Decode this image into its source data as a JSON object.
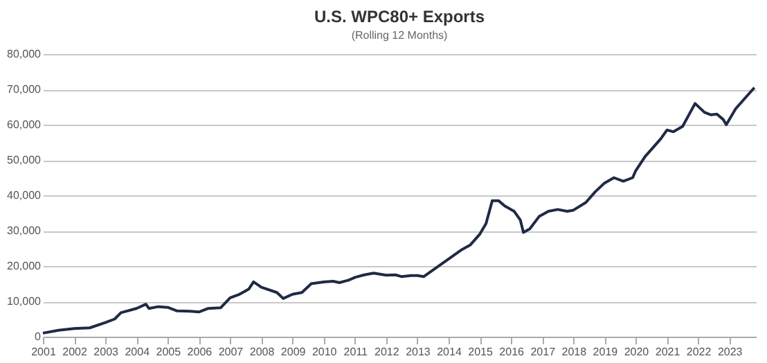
{
  "chart_data": {
    "type": "line",
    "title": "U.S. WPC80+ Exports",
    "subtitle": "(Rolling 12 Months)",
    "x": [
      2001.0,
      2001.5,
      2002.0,
      2002.5,
      2003.0,
      2003.3,
      2003.5,
      2004.0,
      2004.3,
      2004.4,
      2004.7,
      2005.0,
      2005.3,
      2005.7,
      2006.0,
      2006.3,
      2006.7,
      2007.0,
      2007.3,
      2007.6,
      2007.75,
      2008.0,
      2008.5,
      2008.7,
      2009.0,
      2009.3,
      2009.6,
      2010.0,
      2010.3,
      2010.5,
      2010.8,
      2011.0,
      2011.3,
      2011.6,
      2012.0,
      2012.3,
      2012.5,
      2012.8,
      2013.0,
      2013.2,
      2013.6,
      2014.0,
      2014.4,
      2014.7,
      2015.0,
      2015.2,
      2015.4,
      2015.6,
      2015.8,
      2016.1,
      2016.3,
      2016.4,
      2016.6,
      2016.9,
      2017.2,
      2017.5,
      2017.8,
      2018.0,
      2018.4,
      2018.7,
      2019.0,
      2019.3,
      2019.6,
      2019.9,
      2020.0,
      2020.3,
      2020.6,
      2020.8,
      2021.0,
      2021.2,
      2021.5,
      2021.9,
      2022.2,
      2022.4,
      2022.6,
      2022.8,
      2022.9,
      2023.2,
      2023.5,
      2023.8
    ],
    "series": [
      {
        "color": "#1f2a44",
        "values": [
          1000,
          1800,
          2300,
          2500,
          4000,
          5000,
          6800,
          8000,
          9200,
          8000,
          8500,
          8300,
          7300,
          7200,
          7000,
          8000,
          8200,
          11000,
          12000,
          13500,
          15500,
          14000,
          12500,
          10800,
          12000,
          12500,
          15000,
          15500,
          15700,
          15300,
          16000,
          16800,
          17500,
          18000,
          17400,
          17500,
          17000,
          17300,
          17300,
          17000,
          19500,
          22000,
          24500,
          26000,
          29000,
          32000,
          38500,
          38500,
          37000,
          35500,
          33000,
          29500,
          30500,
          34000,
          35500,
          36000,
          35500,
          35800,
          38000,
          41000,
          43500,
          45000,
          44000,
          45000,
          47000,
          51000,
          54000,
          56000,
          58500,
          58000,
          59500,
          66000,
          63500,
          62800,
          63000,
          61500,
          60000,
          64500,
          67500,
          70500
        ]
      }
    ],
    "xlim": [
      2001,
      2023.85
    ],
    "xticks": [
      2001,
      2002,
      2003,
      2004,
      2005,
      2006,
      2007,
      2008,
      2009,
      2010,
      2011,
      2012,
      2013,
      2014,
      2015,
      2016,
      2017,
      2018,
      2019,
      2020,
      2021,
      2022,
      2023
    ],
    "ylim": [
      0,
      80000
    ],
    "yticks": [
      0,
      {
        "value": 10000,
        "label": "10,000"
      },
      {
        "value": 20000,
        "label": "20,000"
      },
      {
        "value": 30000,
        "label": "30,000"
      },
      {
        "value": 40000,
        "label": "40,000"
      },
      {
        "value": 50000,
        "label": "50,000"
      },
      {
        "value": 60000,
        "label": "60,000"
      },
      {
        "value": 70000,
        "label": "70,000"
      },
      {
        "value": 80000,
        "label": "80,000"
      }
    ],
    "grid": "y",
    "marker": "none",
    "line_style": "solid"
  }
}
